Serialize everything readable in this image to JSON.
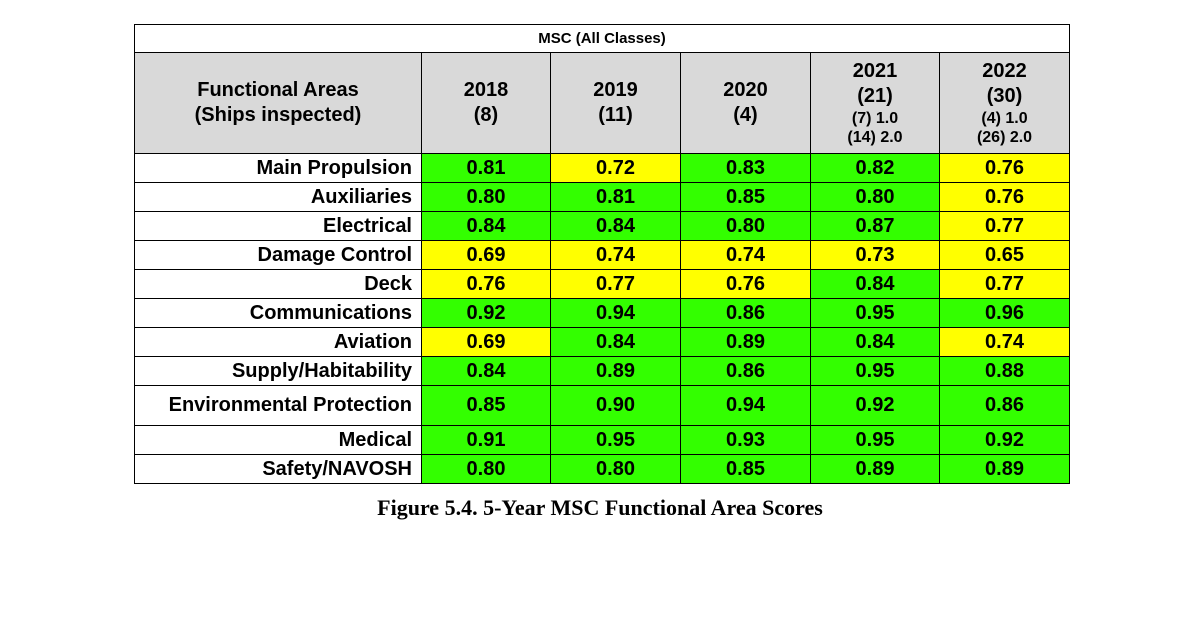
{
  "table": {
    "title": "MSC (All Classes)",
    "header": {
      "area": [
        "Functional Areas",
        "(Ships inspected)"
      ],
      "years": [
        {
          "year": "2018",
          "count": "(8)",
          "sub": []
        },
        {
          "year": "2019",
          "count": "(11)",
          "sub": []
        },
        {
          "year": "2020",
          "count": "(4)",
          "sub": []
        },
        {
          "year": "2021",
          "count": "(21)",
          "sub": [
            "(7) 1.0",
            "(14) 2.0"
          ]
        },
        {
          "year": "2022",
          "count": "(30)",
          "sub": [
            "(4) 1.0",
            "(26) 2.0"
          ]
        }
      ]
    },
    "rows": [
      {
        "area": "Main Propulsion",
        "scores": [
          "0.81",
          "0.72",
          "0.83",
          "0.82",
          "0.76"
        ],
        "colors": [
          "green",
          "yellow",
          "green",
          "green",
          "yellow"
        ]
      },
      {
        "area": "Auxiliaries",
        "scores": [
          "0.80",
          "0.81",
          "0.85",
          "0.80",
          "0.76"
        ],
        "colors": [
          "green",
          "green",
          "green",
          "green",
          "yellow"
        ]
      },
      {
        "area": "Electrical",
        "scores": [
          "0.84",
          "0.84",
          "0.80",
          "0.87",
          "0.77"
        ],
        "colors": [
          "green",
          "green",
          "green",
          "green",
          "yellow"
        ]
      },
      {
        "area": "Damage Control",
        "scores": [
          "0.69",
          "0.74",
          "0.74",
          "0.73",
          "0.65"
        ],
        "colors": [
          "yellow",
          "yellow",
          "yellow",
          "yellow",
          "yellow"
        ]
      },
      {
        "area": "Deck",
        "scores": [
          "0.76",
          "0.77",
          "0.76",
          "0.84",
          "0.77"
        ],
        "colors": [
          "yellow",
          "yellow",
          "yellow",
          "green",
          "yellow"
        ]
      },
      {
        "area": "Communications",
        "scores": [
          "0.92",
          "0.94",
          "0.86",
          "0.95",
          "0.96"
        ],
        "colors": [
          "green",
          "green",
          "green",
          "green",
          "green"
        ]
      },
      {
        "area": "Aviation",
        "scores": [
          "0.69",
          "0.84",
          "0.89",
          "0.84",
          "0.74"
        ],
        "colors": [
          "yellow",
          "green",
          "green",
          "green",
          "yellow"
        ]
      },
      {
        "area": "Supply/Habitability",
        "scores": [
          "0.84",
          "0.89",
          "0.86",
          "0.95",
          "0.88"
        ],
        "colors": [
          "green",
          "green",
          "green",
          "green",
          "green"
        ]
      },
      {
        "area": "Environmental Protection",
        "scores": [
          "0.85",
          "0.90",
          "0.94",
          "0.92",
          "0.86"
        ],
        "colors": [
          "green",
          "green",
          "green",
          "green",
          "green"
        ]
      },
      {
        "area": "Medical",
        "scores": [
          "0.91",
          "0.95",
          "0.93",
          "0.95",
          "0.92"
        ],
        "colors": [
          "green",
          "green",
          "green",
          "green",
          "green"
        ]
      },
      {
        "area": "Safety/NAVOSH",
        "scores": [
          "0.80",
          "0.80",
          "0.85",
          "0.89",
          "0.89"
        ],
        "colors": [
          "green",
          "green",
          "green",
          "green",
          "green"
        ]
      }
    ],
    "colors": {
      "green": "#33ff00",
      "yellow": "#ffff00",
      "header_bg": "#d9d9d9"
    }
  },
  "caption": "Figure 5.4. 5-Year MSC Functional Area Scores"
}
